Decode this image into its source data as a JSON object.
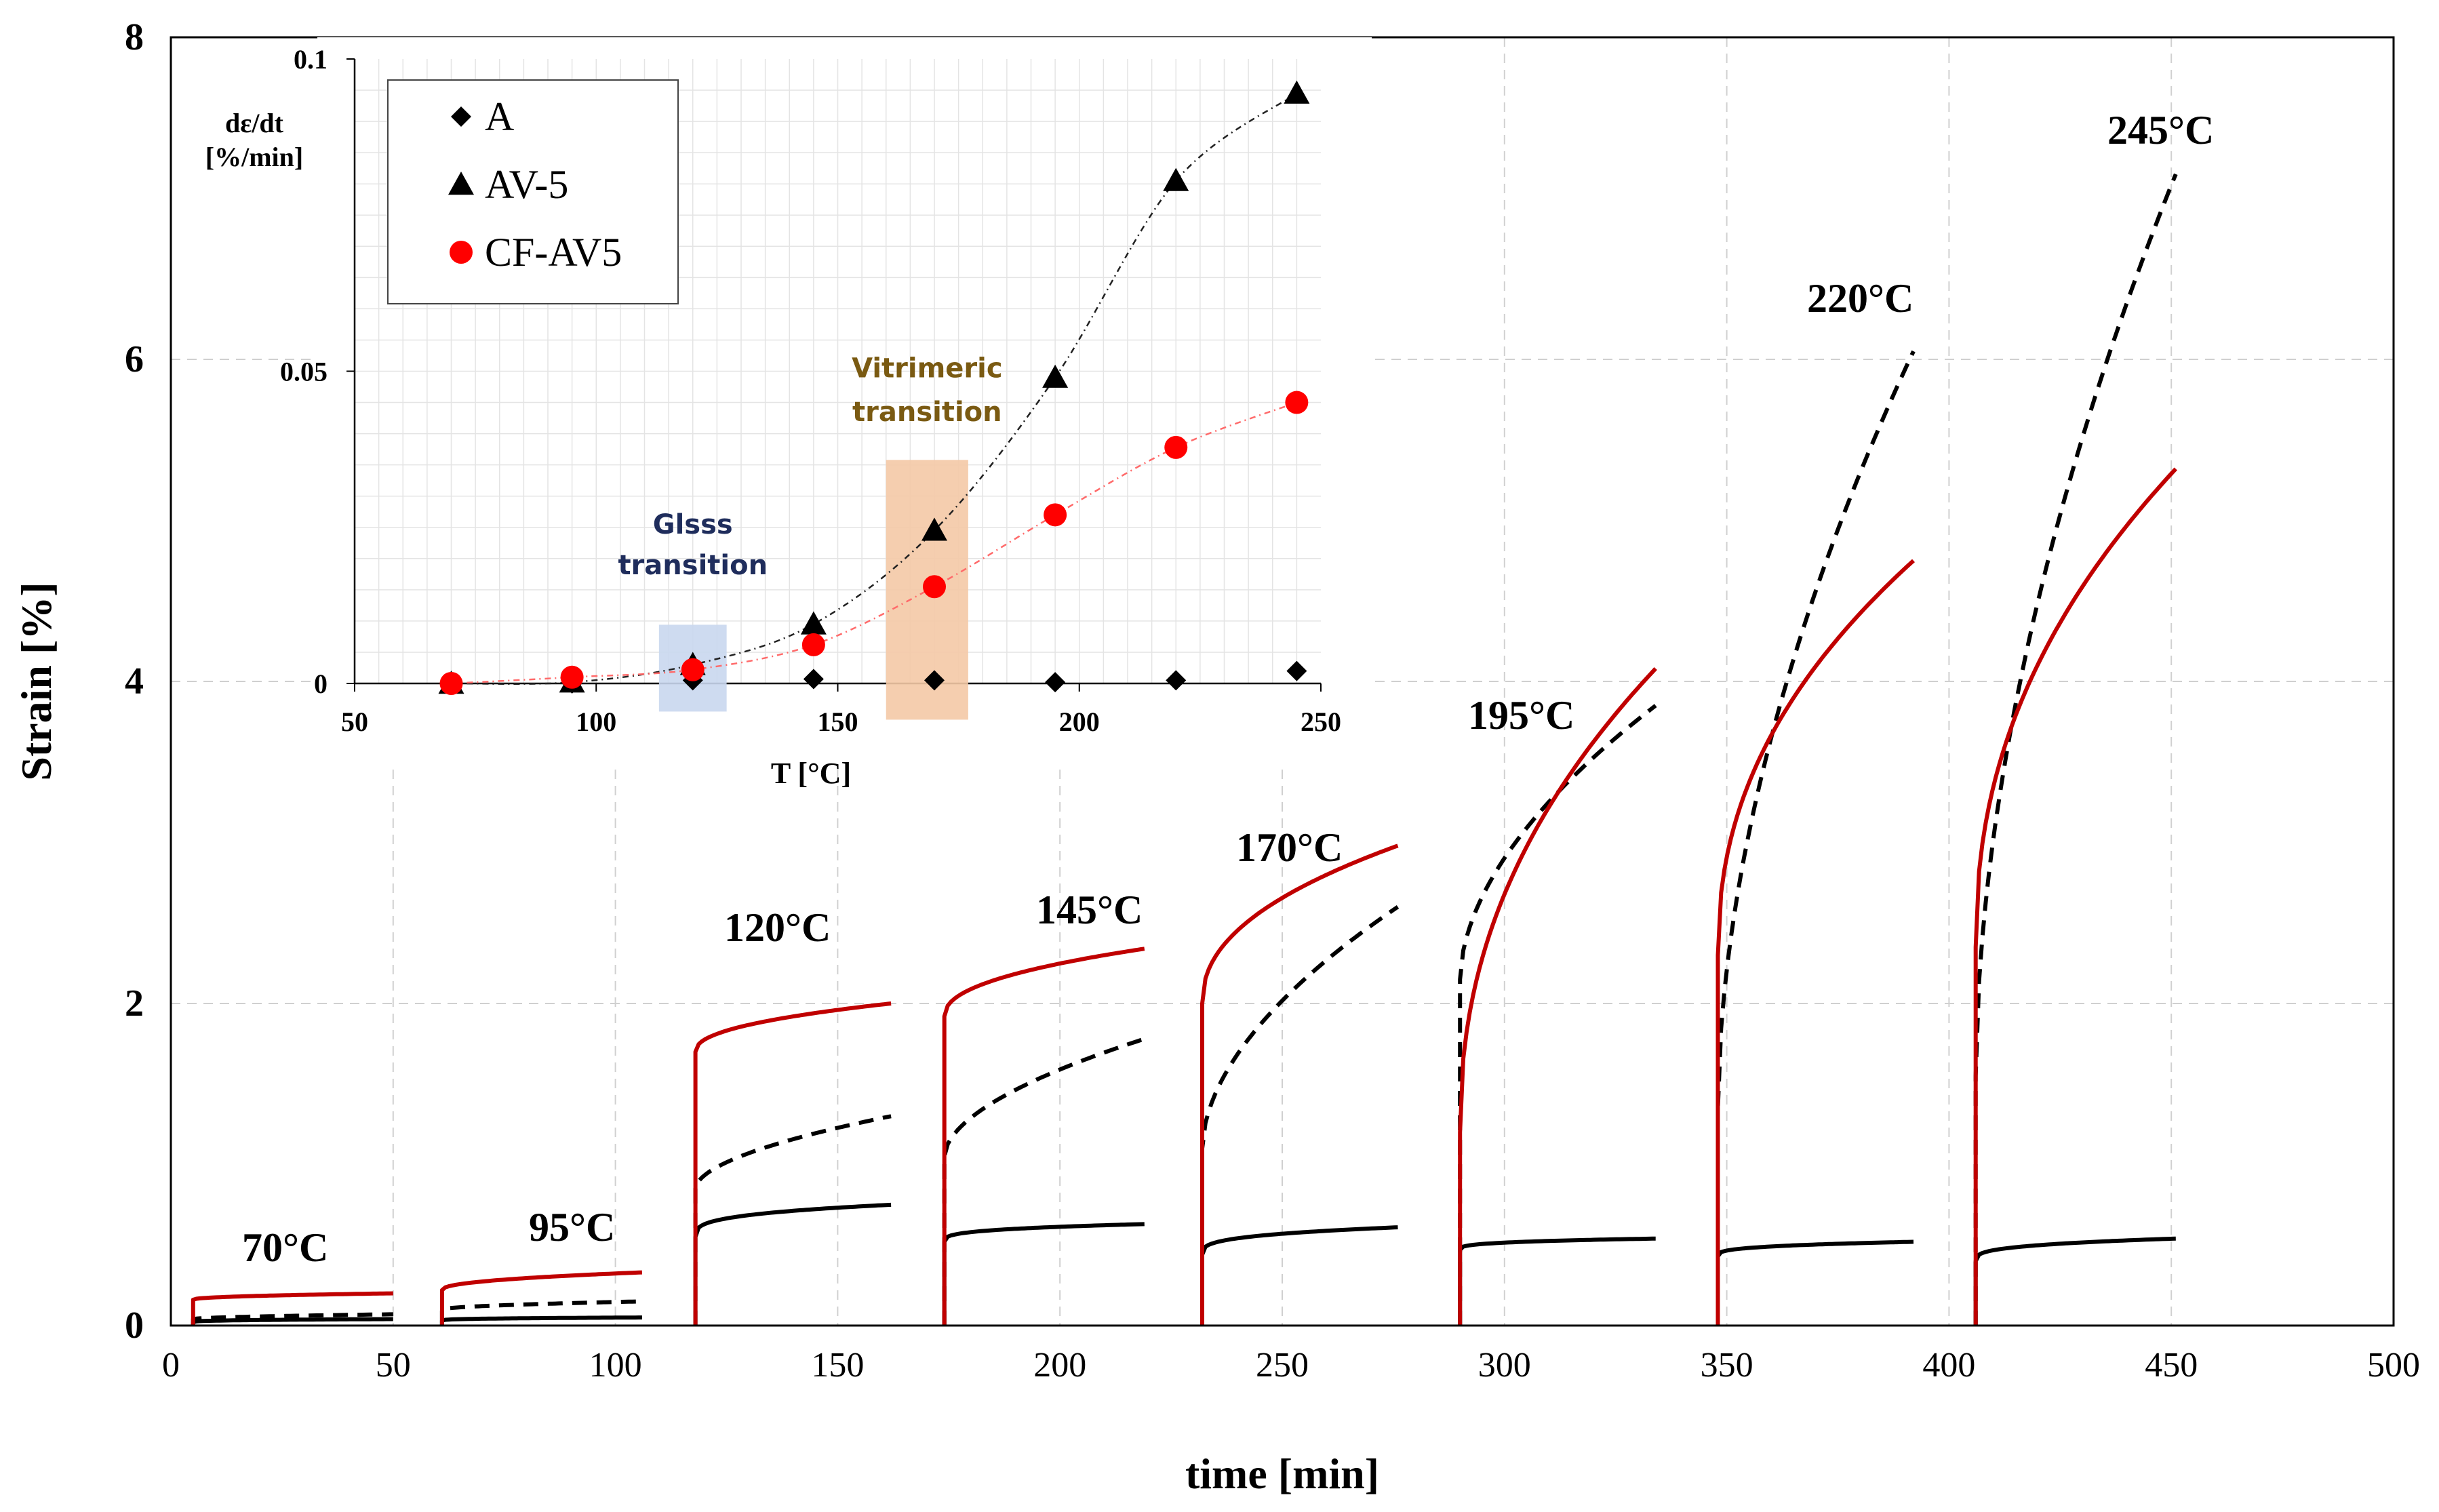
{
  "chart_data": [
    {
      "type": "line",
      "title": "",
      "xlabel": "time [min]",
      "ylabel": "Strain [%]",
      "xlim": [
        0,
        500
      ],
      "ylim": [
        0,
        8
      ],
      "xticks": [
        "0",
        "50",
        "100",
        "150",
        "200",
        "250",
        "300",
        "350",
        "400",
        "450",
        "500"
      ],
      "yticks": [
        "0",
        "2",
        "4",
        "6",
        "8"
      ],
      "grid": true,
      "series_styles": {
        "A": {
          "color": "#000000",
          "dash": "solid"
        },
        "AV-5": {
          "color": "#000000",
          "dash": "dashed"
        },
        "CF-AV5": {
          "color": "#c00000",
          "dash": "solid"
        }
      },
      "segments": [
        {
          "label": "70°C",
          "t_start": 5,
          "t_end": 50,
          "jump": {
            "A": 0.02,
            "AV-5": 0.04,
            "CF-AV5": 0.16
          },
          "end": {
            "A": 0.04,
            "AV-5": 0.07,
            "CF-AV5": 0.2
          }
        },
        {
          "label": "95°C",
          "t_start": 61,
          "t_end": 106,
          "jump": {
            "A": 0.03,
            "AV-5": 0.1,
            "CF-AV5": 0.22
          },
          "end": {
            "A": 0.05,
            "AV-5": 0.15,
            "CF-AV5": 0.33
          }
        },
        {
          "label": "120°C",
          "t_start": 118,
          "t_end": 162,
          "jump": {
            "A": 0.55,
            "AV-5": 0.85,
            "CF-AV5": 1.7
          },
          "end": {
            "A": 0.75,
            "AV-5": 1.3,
            "CF-AV5": 2.0
          }
        },
        {
          "label": "145°C",
          "t_start": 174,
          "t_end": 219,
          "jump": {
            "A": 0.52,
            "AV-5": 1.05,
            "CF-AV5": 1.92
          },
          "end": {
            "A": 0.63,
            "AV-5": 1.78,
            "CF-AV5": 2.34
          }
        },
        {
          "label": "170°C",
          "t_start": 232,
          "t_end": 276,
          "jump": {
            "A": 0.44,
            "AV-5": 1.1,
            "CF-AV5": 2.0
          },
          "end": {
            "A": 0.61,
            "AV-5": 2.6,
            "CF-AV5": 2.98
          }
        },
        {
          "label": "195°C",
          "t_start": 290,
          "t_end": 334,
          "jump": {
            "A": 0.47,
            "AV-5": 2.15,
            "CF-AV5": 1.2
          },
          "end": {
            "A": 0.54,
            "AV-5": 3.85,
            "CF-AV5": 4.08
          }
        },
        {
          "label": "220°C",
          "t_start": 348,
          "t_end": 392,
          "jump": {
            "A": 0.43,
            "AV-5": 1.35,
            "CF-AV5": 2.3
          },
          "end": {
            "A": 0.52,
            "AV-5": 6.05,
            "CF-AV5": 4.75
          }
        },
        {
          "label": "245°C",
          "t_start": 406,
          "t_end": 451,
          "jump": {
            "A": 0.4,
            "AV-5": 1.55,
            "CF-AV5": 2.35
          },
          "end": {
            "A": 0.54,
            "AV-5": 7.15,
            "CF-AV5": 5.32
          }
        }
      ]
    },
    {
      "type": "scatter",
      "title": "",
      "xlabel": "T [°C]",
      "ylabel": "dε/dt [%/min]",
      "xlim": [
        50,
        250
      ],
      "ylim": [
        0,
        0.1
      ],
      "xticks": [
        "50",
        "100",
        "150",
        "200",
        "250"
      ],
      "yticks": [
        "0",
        "0.05",
        "0.1"
      ],
      "grid": true,
      "legend_position": "top-left",
      "x": [
        70,
        95,
        120,
        145,
        170,
        195,
        220,
        245
      ],
      "series": [
        {
          "name": "A",
          "marker": "diamond",
          "color": "#000000",
          "values": [
            0.0,
            0.0,
            0.0005,
            0.0007,
            0.0005,
            0.0002,
            0.0005,
            0.002
          ]
        },
        {
          "name": "AV-5",
          "marker": "triangle",
          "color": "#000000",
          "values": [
            0.0,
            0.0002,
            0.003,
            0.0095,
            0.0245,
            0.049,
            0.0805,
            0.0945
          ]
        },
        {
          "name": "CF-AV5",
          "marker": "circle",
          "color": "#ff0000",
          "values": [
            0.0,
            0.001,
            0.0022,
            0.0062,
            0.0155,
            0.027,
            0.0378,
            0.045
          ]
        }
      ],
      "annotations": [
        {
          "text": "Glsss transition",
          "lines": [
            "Glsss",
            "transition"
          ],
          "color": "#1f2d5c",
          "x_range": [
            113,
            127
          ],
          "shade": "#c9d7ee"
        },
        {
          "text": "Vitrimeric transition",
          "lines": [
            "Vitrimeric",
            "transition"
          ],
          "color": "#7a5a12",
          "x_range": [
            160,
            177
          ],
          "shade": "#f4c9a6"
        }
      ]
    }
  ]
}
